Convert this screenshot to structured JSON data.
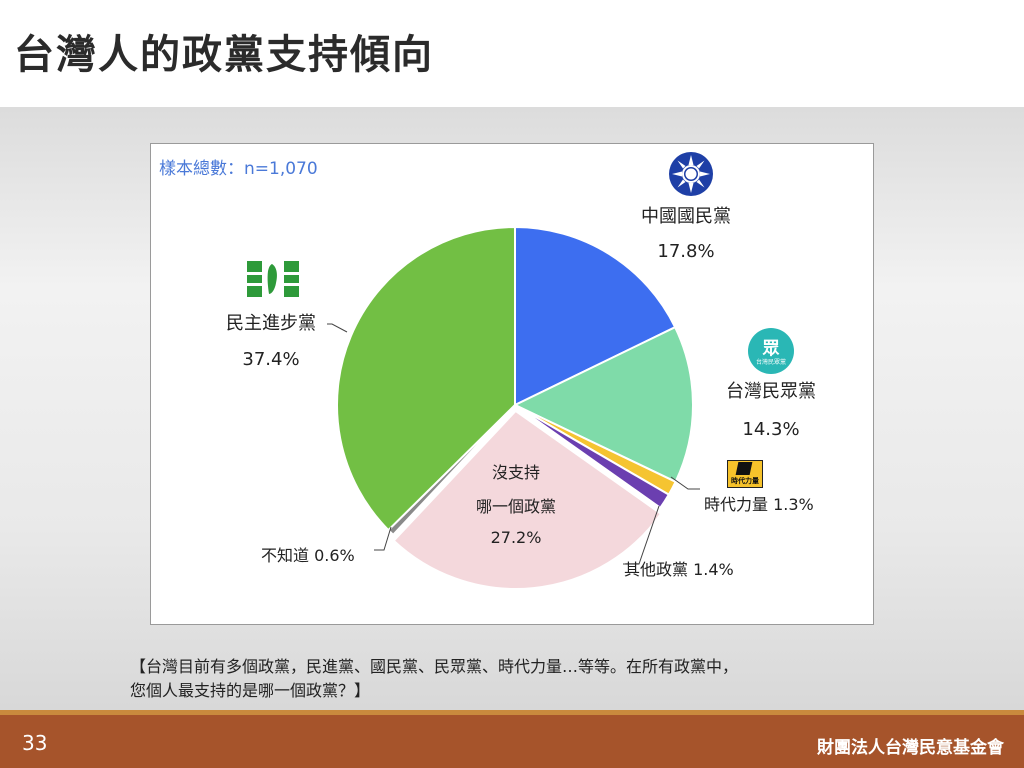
{
  "slide": {
    "title": "台灣人的政黨支持傾向",
    "question_line1": "【台灣目前有多個政黨，民進黨、國民黨、民眾黨、時代力量…等等。在所有政黨中，",
    "question_line2": "您個人最支持的是哪一個政黨？】",
    "page_number": "33",
    "organization": "財團法人台灣民意基金會"
  },
  "chart_data": {
    "type": "pie",
    "sample_label": "樣本總數：n=1,070",
    "slices": [
      {
        "name": "中國國民黨",
        "value": 17.8,
        "label": "17.8%",
        "color": "#3d6ef0"
      },
      {
        "name": "台灣民眾黨",
        "value": 14.3,
        "label": "14.3%",
        "color": "#7fdba9"
      },
      {
        "name": "時代力量",
        "value": 1.3,
        "label": "1.3%",
        "color": "#f5c431"
      },
      {
        "name": "其他政黨",
        "value": 1.4,
        "label": "1.4%",
        "color": "#6b3fb0"
      },
      {
        "name": "沒支持哪一個政黨",
        "value": 27.2,
        "label": "27.2%",
        "color": "#f4d8dc"
      },
      {
        "name": "不知道",
        "value": 0.6,
        "label": "0.6%",
        "color": "#8a8a8a"
      },
      {
        "name": "民主進步黨",
        "value": 37.4,
        "label": "37.4%",
        "color": "#72bf44"
      }
    ],
    "labels": {
      "kmt_name": "中國國民黨",
      "kmt_pct": "17.8%",
      "tpp_name": "台灣民眾黨",
      "tpp_pct": "14.3%",
      "npp_text": "時代力量 1.3%",
      "other_text": "其他政黨 1.4%",
      "none_line1": "沒支持",
      "none_line2": "哪一個政黨",
      "none_pct": "27.2%",
      "dk_text": "不知道 0.6%",
      "dpp_name": "民主進步黨",
      "dpp_pct": "37.4%"
    },
    "logos": {
      "tpp_logo_text": "眾",
      "tpp_logo_sub": "台灣民眾黨",
      "npp_logo_text": "時代力量"
    }
  }
}
